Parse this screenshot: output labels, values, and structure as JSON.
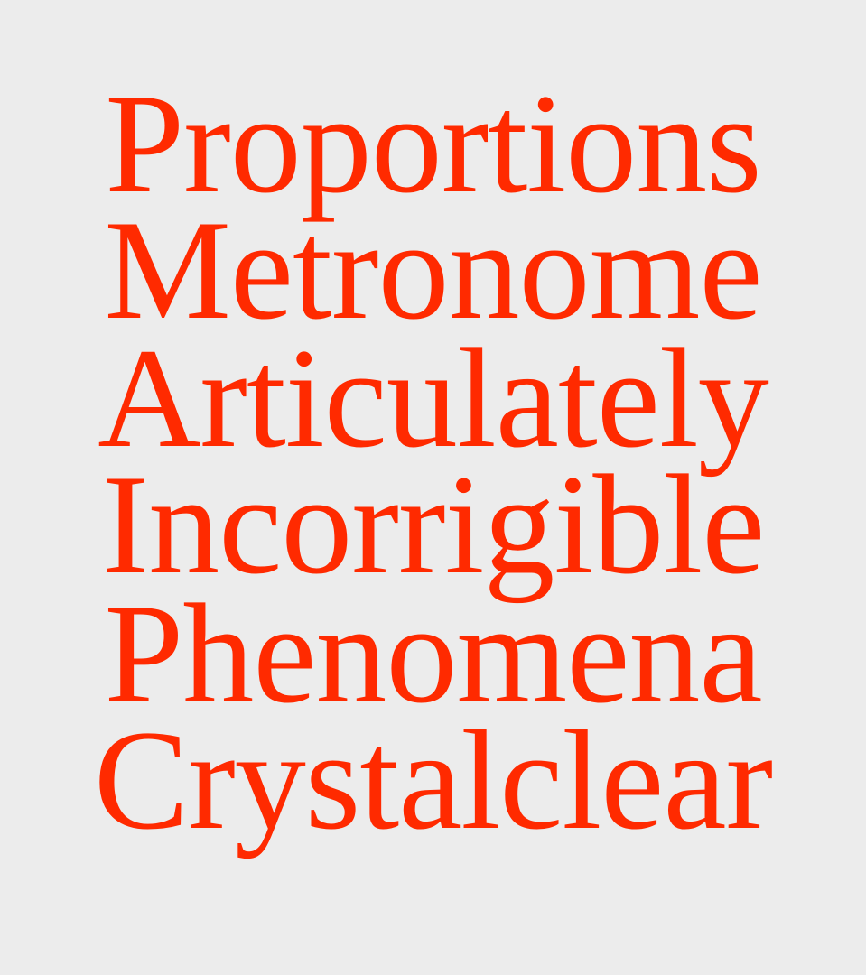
{
  "colors": {
    "background": "#ececec",
    "text": "#ff2a00"
  },
  "words": [
    "Proportions",
    "Metronome",
    "Articulately",
    "Incorrigible",
    "Phenomena",
    "Crystalclear"
  ]
}
